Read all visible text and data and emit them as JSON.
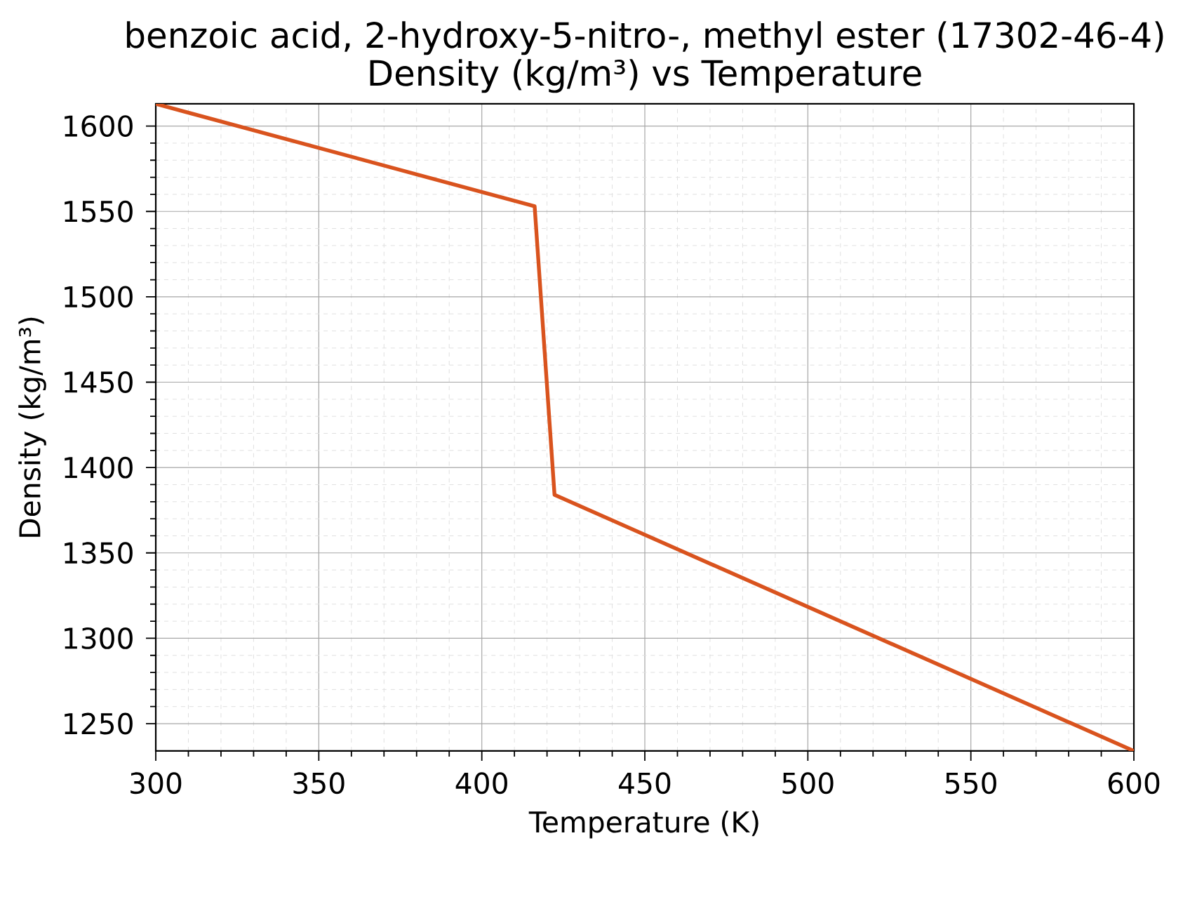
{
  "chart_data": {
    "type": "line",
    "title": "benzoic acid, 2-hydroxy-5-nitro-, methyl ester (17302-46-4)",
    "subtitle": "Density (kg/m³) vs Temperature",
    "xlabel": "Temperature (K)",
    "ylabel": "Density (kg/m³)",
    "x": [
      300,
      416.2,
      422.3,
      600
    ],
    "series": [
      {
        "color": "#d9531e",
        "values": [
          1613,
          1553,
          1384,
          1234
        ]
      }
    ],
    "xlim": [
      300,
      600
    ],
    "ylim": [
      1234,
      1613
    ],
    "xticks": [
      300,
      350,
      400,
      450,
      500,
      550,
      600
    ],
    "yticks": [
      1250,
      1300,
      1350,
      1400,
      1450,
      1500,
      1550,
      1600
    ],
    "grid": true,
    "marker": "none",
    "line_style": "solid"
  }
}
